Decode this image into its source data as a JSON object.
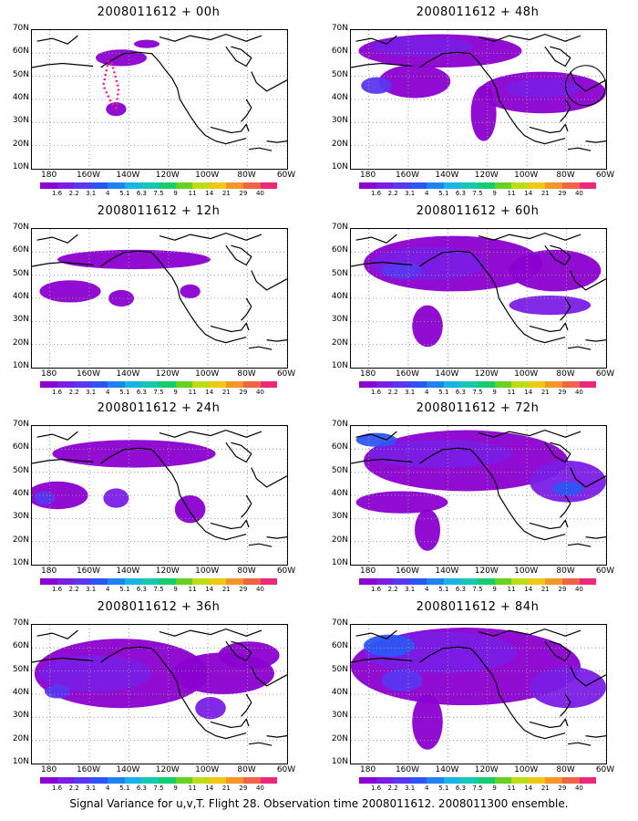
{
  "panels": [
    {
      "title": "2008011612 + 00h"
    },
    {
      "title": "2008011612 + 48h"
    },
    {
      "title": "2008011612 + 12h"
    },
    {
      "title": "2008011612 + 60h"
    },
    {
      "title": "2008011612 + 24h"
    },
    {
      "title": "2008011612 + 72h"
    },
    {
      "title": "2008011612 + 36h"
    },
    {
      "title": "2008011612 + 84h"
    }
  ],
  "lat_labels": [
    "70N",
    "60N",
    "50N",
    "40N",
    "30N",
    "20N",
    "10N"
  ],
  "lon_labels": [
    "180",
    "160W",
    "140W",
    "120W",
    "100W",
    "80W",
    "60W"
  ],
  "colorbar": {
    "labels": [
      "1.6",
      "2.2",
      "3.1",
      "4",
      "5.1",
      "6.3",
      "7.5",
      "9",
      "11",
      "14",
      "21",
      "29",
      "40"
    ],
    "colors": [
      "#8b00d0",
      "#7a1ee6",
      "#5a37f0",
      "#2d55f5",
      "#1e82f0",
      "#19b4e6",
      "#14c8b4",
      "#14cd6e",
      "#64d21e",
      "#bedc14",
      "#f0c814",
      "#f59628",
      "#f06446",
      "#ec2878"
    ]
  },
  "caption": "Signal Variance for u,v,T. Flight 28. Observation time 2008011612. 2008011300 ensemble."
}
